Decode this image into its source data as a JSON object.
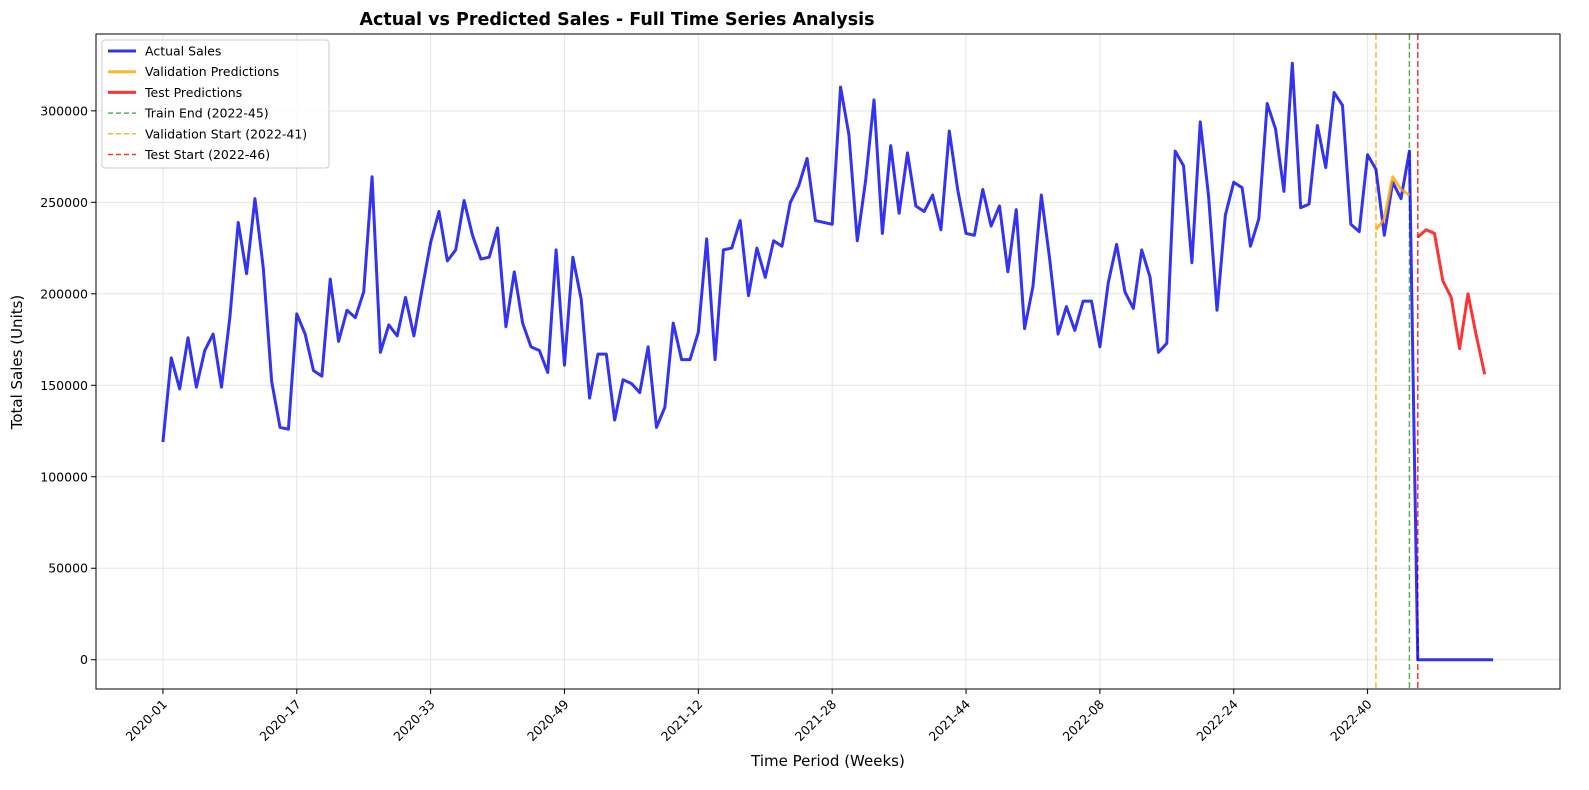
{
  "chart_data": {
    "type": "line",
    "title": "Actual vs Predicted Sales - Full Time Series Analysis",
    "xlabel": "Time Period (Weeks)",
    "ylabel": "Total Sales (Units)",
    "x_start_week": "2020-01",
    "x_tick_labels": [
      "2020-01",
      "2020-17",
      "2020-33",
      "2020-49",
      "2021-12",
      "2021-28",
      "2021-44",
      "2022-08",
      "2022-24",
      "2022-40"
    ],
    "x_tick_index": [
      0,
      16,
      32,
      48,
      64,
      80,
      96,
      112,
      128,
      144
    ],
    "xlim": [
      -8,
      167
    ],
    "ylim": [
      -16000,
      342000
    ],
    "y_ticks": [
      0,
      50000,
      100000,
      150000,
      200000,
      250000,
      300000
    ],
    "grid": true,
    "legend_position": "upper-left",
    "series": [
      {
        "name": "Actual Sales",
        "color": "#0000ee",
        "x_start": 0,
        "values": [
          119000,
          165000,
          148000,
          176000,
          149000,
          169000,
          178000,
          149000,
          187000,
          239000,
          211000,
          252000,
          214000,
          152000,
          127000,
          126000,
          189000,
          178000,
          158000,
          155000,
          208000,
          174000,
          191000,
          187000,
          201000,
          264000,
          168000,
          183000,
          177000,
          198000,
          177000,
          203000,
          228000,
          245000,
          218000,
          224000,
          251000,
          232000,
          219000,
          220000,
          236000,
          182000,
          212000,
          184000,
          171000,
          169000,
          157000,
          224000,
          161000,
          220000,
          197000,
          143000,
          167000,
          167000,
          131000,
          153000,
          151000,
          146000,
          171000,
          127000,
          138000,
          184000,
          164000,
          164000,
          179000,
          230000,
          164000,
          224000,
          225000,
          240000,
          199000,
          225000,
          209000,
          229000,
          226000,
          250000,
          259000,
          274000,
          240000,
          239000,
          238000,
          313000,
          287000,
          229000,
          262000,
          306000,
          233000,
          281000,
          244000,
          277000,
          248000,
          245000,
          254000,
          235000,
          289000,
          257000,
          233000,
          232000,
          257000,
          237000,
          248000,
          212000,
          246000,
          181000,
          204000,
          254000,
          219000,
          178000,
          193000,
          180000,
          196000,
          196000,
          171000,
          206000,
          227000,
          201000,
          192000,
          224000,
          209000,
          168000,
          173000,
          278000,
          270000,
          217000,
          294000,
          253000,
          191000,
          243000,
          261000,
          258000,
          226000,
          241000,
          304000,
          290000,
          256000,
          326000,
          247000,
          249000,
          292000,
          269000,
          310000,
          303000,
          238000,
          234000,
          276000,
          268000,
          232000,
          261000,
          252000,
          278000,
          0,
          0,
          0,
          0,
          0,
          0,
          0,
          0,
          0,
          0
        ]
      },
      {
        "name": "Validation Predictions",
        "color": "#ffa500",
        "x_start": 145,
        "values": [
          235000,
          241000,
          264000,
          257000,
          254000
        ]
      },
      {
        "name": "Test Predictions",
        "color": "#ff0000",
        "x_start": 150,
        "values": [
          231000,
          235000,
          233000,
          207000,
          198000,
          170000,
          200000,
          177000,
          156000
        ]
      }
    ],
    "vlines": [
      {
        "name": "Train End (2022-45)",
        "x": 149,
        "color": "#2ca02c"
      },
      {
        "name": "Validation Start (2022-41)",
        "x": 145,
        "color": "#ffa500"
      },
      {
        "name": "Test Start (2022-46)",
        "x": 150,
        "color": "#ff0000"
      }
    ],
    "legend": [
      {
        "label": "Actual Sales",
        "color": "#0000ee",
        "style": "solid"
      },
      {
        "label": "Validation Predictions",
        "color": "#ffa500",
        "style": "solid"
      },
      {
        "label": "Test Predictions",
        "color": "#ff0000",
        "style": "solid"
      },
      {
        "label": "Train End (2022-45)",
        "color": "#2ca02c",
        "style": "dashed"
      },
      {
        "label": "Validation Start (2022-41)",
        "color": "#ffa500",
        "style": "dashed"
      },
      {
        "label": "Test Start (2022-46)",
        "color": "#ff0000",
        "style": "dashed"
      }
    ]
  }
}
